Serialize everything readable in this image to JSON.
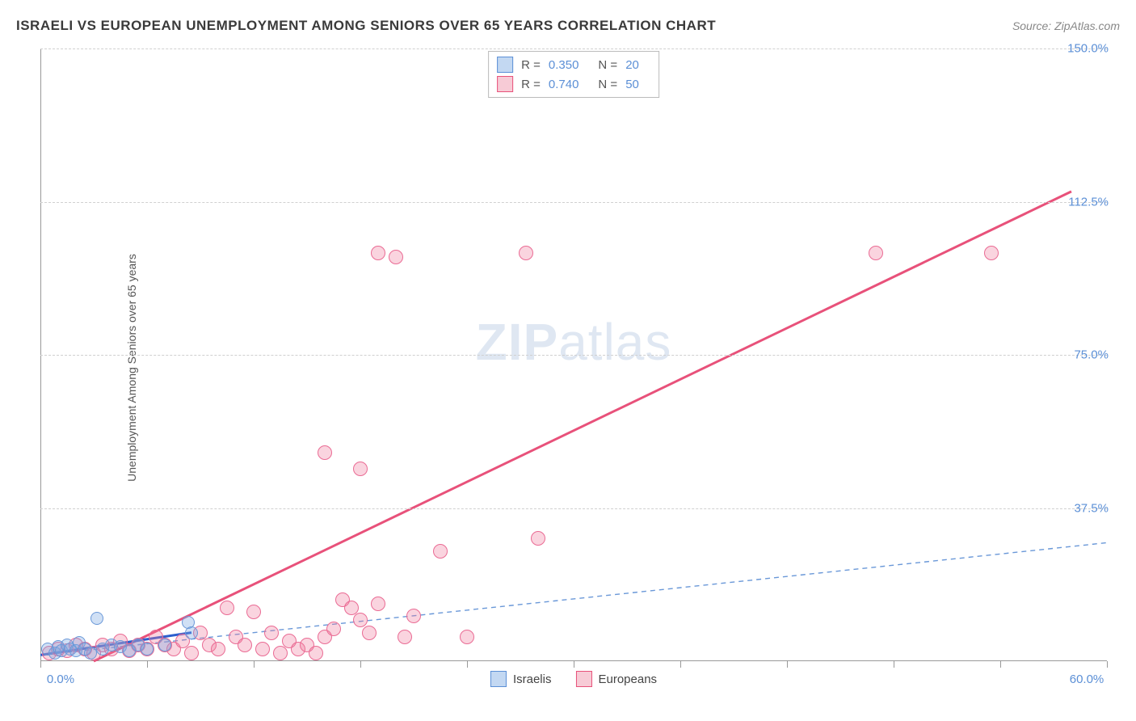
{
  "title": "ISRAELI VS EUROPEAN UNEMPLOYMENT AMONG SENIORS OVER 65 YEARS CORRELATION CHART",
  "source": "Source: ZipAtlas.com",
  "y_axis_label": "Unemployment Among Seniors over 65 years",
  "watermark": {
    "bold": "ZIP",
    "light": "atlas"
  },
  "chart": {
    "type": "scatter",
    "background_color": "#ffffff",
    "grid_color": "#d0d0d0",
    "axis_color": "#999999",
    "tick_label_color": "#5b8fd6",
    "font_size": 15,
    "xlim": [
      0,
      60
    ],
    "ylim": [
      0,
      150
    ],
    "x_ticks": [
      0,
      6,
      12,
      18,
      24,
      30,
      36,
      42,
      48,
      54,
      60
    ],
    "x_tick_labels": {
      "0": "0.0%",
      "60": "60.0%"
    },
    "y_ticks": [
      37.5,
      75.0,
      112.5,
      150.0
    ],
    "y_tick_labels": [
      "37.5%",
      "75.0%",
      "112.5%",
      "150.0%"
    ],
    "series": {
      "israelis": {
        "label": "Israelis",
        "swatch_fill": "#c3d8f2",
        "swatch_border": "#5b8fd6",
        "point_fill": "rgba(120,165,225,0.35)",
        "point_border": "#6a98d8",
        "point_radius": 8,
        "R": "0.350",
        "N": "20",
        "trend_solid": {
          "x1": 0,
          "y1": 1.5,
          "x2": 8.5,
          "y2": 7,
          "color": "#2c5fce",
          "width": 3
        },
        "trend_dashed": {
          "x1": 0,
          "y1": 1.5,
          "x2": 60,
          "y2": 29,
          "color": "#6a98d8",
          "width": 1.4,
          "dash": "6,5"
        },
        "points": [
          [
            0.4,
            3
          ],
          [
            0.8,
            2
          ],
          [
            1.0,
            3.5
          ],
          [
            1.2,
            2.5
          ],
          [
            1.5,
            4
          ],
          [
            1.7,
            3
          ],
          [
            2.0,
            2.5
          ],
          [
            2.2,
            4.5
          ],
          [
            2.5,
            3
          ],
          [
            2.8,
            2
          ],
          [
            3.2,
            10.5
          ],
          [
            3.5,
            3
          ],
          [
            4.0,
            4
          ],
          [
            4.5,
            3.5
          ],
          [
            5.0,
            2.5
          ],
          [
            5.5,
            4
          ],
          [
            6.0,
            3
          ],
          [
            7.0,
            4
          ],
          [
            8.3,
            9.5
          ],
          [
            8.5,
            7
          ]
        ]
      },
      "europeans": {
        "label": "Europeans",
        "swatch_fill": "#f7cbd6",
        "swatch_border": "#e8517a",
        "point_fill": "rgba(238,120,155,0.32)",
        "point_border": "#ea6b94",
        "point_radius": 9,
        "R": "0.740",
        "N": "50",
        "trend_solid": {
          "x1": 3,
          "y1": 0,
          "x2": 58,
          "y2": 115,
          "color": "#e8517a",
          "width": 3
        },
        "points": [
          [
            0.5,
            2
          ],
          [
            1.0,
            3
          ],
          [
            1.5,
            2.5
          ],
          [
            2.0,
            4
          ],
          [
            2.5,
            3
          ],
          [
            3.0,
            2
          ],
          [
            3.5,
            4
          ],
          [
            4.0,
            3
          ],
          [
            4.5,
            5
          ],
          [
            5.0,
            2.5
          ],
          [
            5.5,
            4
          ],
          [
            6.0,
            3
          ],
          [
            6.5,
            6
          ],
          [
            7.0,
            4
          ],
          [
            7.5,
            3
          ],
          [
            8.0,
            5
          ],
          [
            8.5,
            2
          ],
          [
            9.0,
            7
          ],
          [
            9.5,
            4
          ],
          [
            10.0,
            3
          ],
          [
            10.5,
            13
          ],
          [
            11.0,
            6
          ],
          [
            11.5,
            4
          ],
          [
            12.0,
            12
          ],
          [
            12.5,
            3
          ],
          [
            13.0,
            7
          ],
          [
            13.5,
            2
          ],
          [
            14.0,
            5
          ],
          [
            14.5,
            3
          ],
          [
            15.0,
            4
          ],
          [
            15.5,
            2
          ],
          [
            16.0,
            6
          ],
          [
            16.0,
            51
          ],
          [
            16.5,
            8
          ],
          [
            17.0,
            15
          ],
          [
            17.5,
            13
          ],
          [
            18.0,
            10
          ],
          [
            18.0,
            47
          ],
          [
            18.5,
            7
          ],
          [
            19.0,
            100
          ],
          [
            19.0,
            14
          ],
          [
            20.0,
            99
          ],
          [
            20.5,
            6
          ],
          [
            21.0,
            11
          ],
          [
            22.5,
            27
          ],
          [
            24.0,
            6
          ],
          [
            27.3,
            100
          ],
          [
            28.0,
            30
          ],
          [
            47.0,
            100
          ],
          [
            53.5,
            100
          ]
        ]
      }
    }
  }
}
